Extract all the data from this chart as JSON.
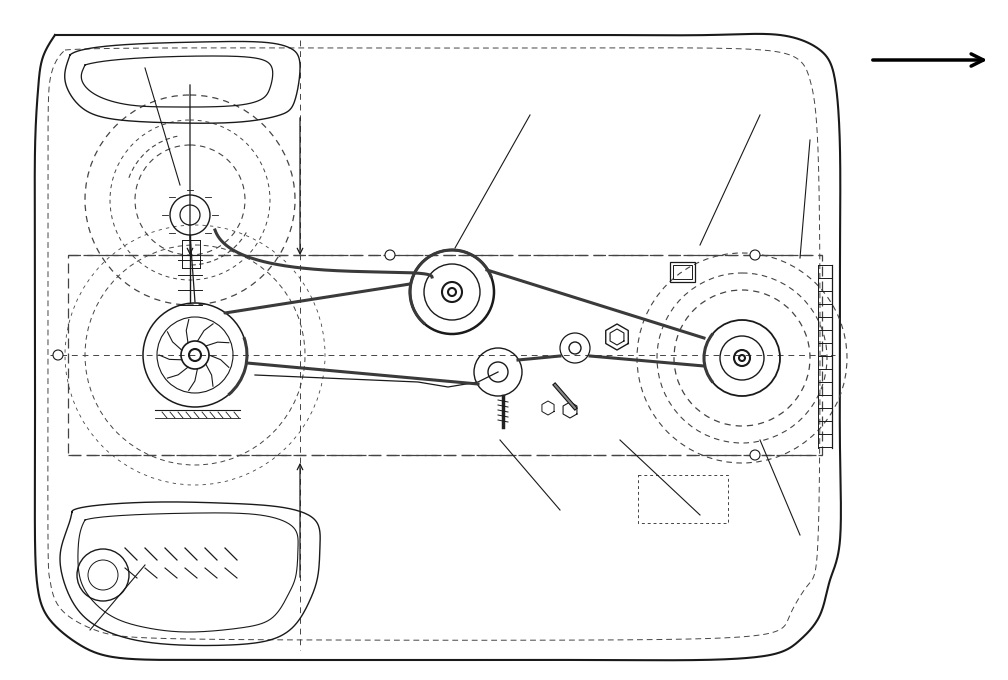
{
  "bg_color": "#ffffff",
  "line_color": "#1a1a1a",
  "dashed_color": "#444444",
  "fig_width": 10.08,
  "fig_height": 6.8,
  "dpi": 100
}
